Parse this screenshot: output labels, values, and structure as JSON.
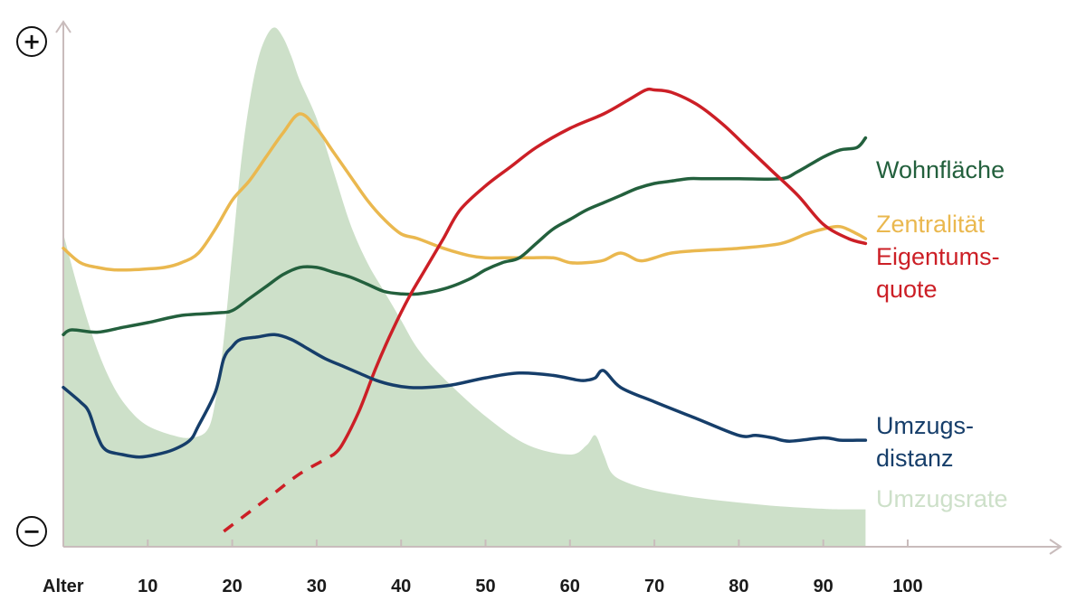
{
  "chart_data": {
    "type": "line",
    "xlabel": "Alter",
    "xlim": [
      0,
      100
    ],
    "x_ticks": [
      10,
      20,
      30,
      40,
      50,
      60,
      70,
      80,
      90,
      100
    ],
    "y_axis_top_symbol": "+",
    "y_axis_bottom_symbol": "−",
    "y_scale": "qualitative (0 = low, 100 = high)",
    "ylim": [
      0,
      100
    ],
    "series": [
      {
        "name": "Umzugsrate",
        "style": "area",
        "color": "#cde0c9",
        "label_lines": [
          "Umzugsrate"
        ],
        "x": [
          0,
          2,
          4,
          6,
          8,
          10,
          13,
          15,
          17,
          18,
          19,
          20,
          21,
          22,
          23,
          24,
          25,
          26,
          27,
          28,
          30,
          32,
          34,
          36,
          38,
          40,
          42,
          45,
          50,
          55,
          60,
          62,
          63,
          64,
          65,
          67,
          70,
          75,
          80,
          85,
          90,
          92,
          95
        ],
        "values": [
          62,
          49,
          38,
          30,
          25,
          22,
          20,
          19.5,
          21,
          27,
          40,
          58,
          76,
          89,
          98,
          103,
          105,
          103,
          99,
          94,
          86,
          75,
          64,
          56,
          50,
          44,
          38,
          32,
          24,
          18,
          16,
          18,
          20,
          16,
          12,
          10,
          8.5,
          7,
          6,
          5.2,
          4.7,
          4.6,
          4.6
        ]
      },
      {
        "name": "Zentralität",
        "style": "line",
        "color": "#eab84f",
        "label_lines": [
          "Zentralität"
        ],
        "x": [
          0,
          2,
          4,
          6,
          8,
          10,
          12,
          14,
          16,
          18,
          20,
          22,
          24,
          26,
          28,
          30,
          32,
          34,
          36,
          38,
          40,
          42,
          45,
          48,
          50,
          52,
          55,
          58,
          60,
          62,
          64,
          66,
          68,
          69,
          70,
          72,
          75,
          80,
          85,
          88,
          90,
          92,
          94,
          95
        ],
        "values": [
          59,
          56,
          55,
          54.5,
          54.5,
          54.7,
          55,
          56,
          58,
          63,
          69,
          73,
          78,
          83,
          87,
          84,
          79,
          74,
          69,
          65,
          62,
          61,
          59,
          57.5,
          57,
          57,
          57,
          57,
          56,
          56,
          56.5,
          58,
          56.5,
          56.5,
          57,
          58,
          58.5,
          59,
          60,
          62,
          63,
          63.5,
          62,
          61
        ]
      },
      {
        "name": "Wohnfläche",
        "style": "line",
        "color": "#23603d",
        "label_lines": [
          "Wohnfläche"
        ],
        "x": [
          0,
          1,
          4,
          7,
          10,
          14,
          18,
          20,
          22,
          24,
          26,
          28,
          30,
          32,
          34,
          36,
          38,
          40,
          42,
          45,
          48,
          50,
          52,
          54,
          56,
          58,
          60,
          62,
          64,
          66,
          68,
          70,
          72,
          74,
          76,
          80,
          85,
          87,
          90,
          92,
          94,
          95
        ],
        "values": [
          41,
          42,
          41.5,
          42.5,
          43.5,
          45,
          45.5,
          46,
          48.5,
          51,
          53.5,
          55,
          55,
          54,
          53,
          51.5,
          50,
          49.5,
          49.5,
          50.5,
          52.5,
          54.5,
          56,
          57,
          60,
          63,
          65,
          67,
          68.5,
          70,
          71.5,
          72.5,
          73,
          73.5,
          73.5,
          73.5,
          73.5,
          75,
          78,
          79.5,
          80,
          82
        ]
      },
      {
        "name": "Eigentumsquote",
        "style": "line",
        "color": "#cc1f26",
        "dashed_until_x": 32,
        "label_lines": [
          "Eigentums-",
          "quote"
        ],
        "x": [
          19,
          22,
          25,
          28,
          31,
          32,
          33,
          35,
          37,
          39,
          41,
          43,
          45,
          47,
          50,
          53,
          56,
          60,
          64,
          67,
          69,
          70,
          72,
          75,
          78,
          81,
          84,
          87,
          90,
          93,
          95
        ],
        "values": [
          0,
          4,
          8,
          12,
          15,
          16,
          18,
          25,
          34,
          42,
          49,
          55,
          61,
          67,
          72,
          76,
          80,
          84,
          87,
          90,
          92,
          92,
          91.5,
          89,
          85,
          80,
          75,
          70,
          64,
          61,
          60
        ]
      },
      {
        "name": "Umzugsdistanz",
        "style": "line",
        "color": "#163e6a",
        "label_lines": [
          "Umzugs-",
          "distanz"
        ],
        "x": [
          0,
          2,
          3,
          4,
          5,
          7,
          9,
          11,
          13,
          15,
          16,
          18,
          19,
          20,
          21,
          23,
          25,
          27,
          29,
          31,
          33,
          35,
          37,
          39,
          41,
          43,
          46,
          50,
          54,
          58,
          61,
          62,
          63,
          64,
          66,
          70,
          75,
          80,
          82,
          84,
          86,
          90,
          92,
          94,
          95
        ],
        "values": [
          30,
          27,
          25,
          20,
          17,
          16,
          15.5,
          16,
          17,
          19,
          22,
          29,
          36,
          38.5,
          40,
          40.5,
          41,
          40,
          38,
          36,
          34.5,
          33,
          31.5,
          30.5,
          30,
          30,
          30.5,
          32,
          33,
          32.5,
          31.5,
          31.5,
          32,
          33.5,
          30,
          27,
          23.5,
          20,
          20,
          19.5,
          18.8,
          19.5,
          19,
          19,
          19
        ]
      }
    ]
  }
}
